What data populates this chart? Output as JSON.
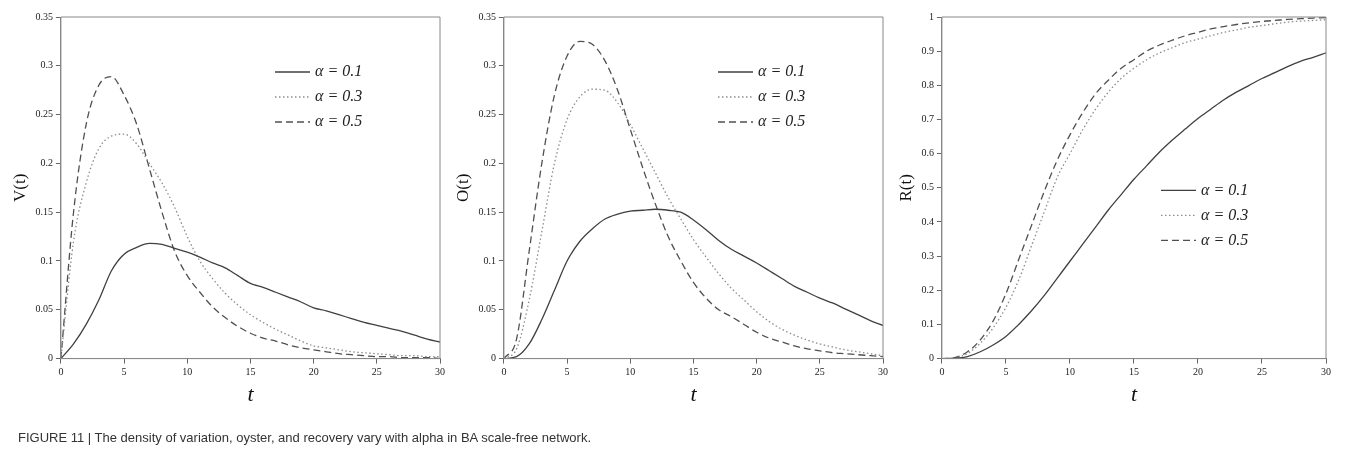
{
  "chart_data": [
    {
      "type": "line",
      "xlabel": "t",
      "ylabel": "V(t)",
      "x": [
        0,
        1,
        2,
        3,
        4,
        5,
        6,
        7,
        8,
        9,
        10,
        11,
        12,
        13,
        14,
        15,
        16,
        17,
        18,
        19,
        20,
        21,
        22,
        23,
        24,
        25,
        26,
        27,
        28,
        29,
        30
      ],
      "xlim": [
        0,
        30
      ],
      "xticks": [
        0,
        5,
        10,
        15,
        20,
        25,
        30
      ],
      "ylim": [
        0,
        0.35
      ],
      "yticks": [
        0,
        0.05,
        0.1,
        0.15,
        0.2,
        0.25,
        0.3,
        0.35
      ],
      "legend": "top right",
      "grid": false,
      "marker": "none",
      "annotations": [
        "FIGURE 11 | The density of variation, oyster, and recovery vary with alpha in BA scale-free network."
      ],
      "series": [
        {
          "name": "α = 0.1",
          "color": "#404040",
          "line_style": "solid",
          "values": [
            0,
            0.015,
            0.035,
            0.06,
            0.09,
            0.107,
            0.114,
            0.118,
            0.117,
            0.113,
            0.109,
            0.104,
            0.098,
            0.093,
            0.085,
            0.077,
            0.073,
            0.068,
            0.063,
            0.058,
            0.052,
            0.049,
            0.045,
            0.041,
            0.037,
            0.034,
            0.031,
            0.028,
            0.024,
            0.02,
            0.017
          ]
        },
        {
          "name": "α = 0.3",
          "color": "#8c8c8c",
          "line_style": "dotted",
          "values": [
            0,
            0.12,
            0.18,
            0.215,
            0.228,
            0.23,
            0.22,
            0.2,
            0.18,
            0.155,
            0.125,
            0.1,
            0.082,
            0.067,
            0.055,
            0.045,
            0.037,
            0.03,
            0.024,
            0.018,
            0.013,
            0.011,
            0.009,
            0.007,
            0.006,
            0.005,
            0.004,
            0.003,
            0.003,
            0.002,
            0.002
          ]
        },
        {
          "name": "α = 0.5",
          "color": "#505050",
          "line_style": "dashed",
          "values": [
            0,
            0.15,
            0.24,
            0.28,
            0.289,
            0.27,
            0.24,
            0.195,
            0.15,
            0.11,
            0.085,
            0.068,
            0.053,
            0.042,
            0.033,
            0.026,
            0.021,
            0.018,
            0.014,
            0.011,
            0.009,
            0.007,
            0.005,
            0.004,
            0.003,
            0.002,
            0.002,
            0.001,
            0.001,
            0.001,
            0
          ]
        }
      ]
    },
    {
      "type": "line",
      "xlabel": "t",
      "ylabel": "O(t)",
      "x": [
        0,
        1,
        2,
        3,
        4,
        5,
        6,
        7,
        8,
        9,
        10,
        11,
        12,
        13,
        14,
        15,
        16,
        17,
        18,
        19,
        20,
        21,
        22,
        23,
        24,
        25,
        26,
        27,
        28,
        29,
        30
      ],
      "xlim": [
        0,
        30
      ],
      "xticks": [
        0,
        5,
        10,
        15,
        20,
        25,
        30
      ],
      "ylim": [
        0,
        0.35
      ],
      "yticks": [
        0,
        0.05,
        0.1,
        0.15,
        0.2,
        0.25,
        0.3,
        0.35
      ],
      "legend": "top right",
      "grid": false,
      "marker": "none",
      "series": [
        {
          "name": "α = 0.1",
          "color": "#404040",
          "line_style": "solid",
          "values": [
            0,
            0.002,
            0.015,
            0.04,
            0.07,
            0.1,
            0.12,
            0.133,
            0.143,
            0.148,
            0.151,
            0.152,
            0.153,
            0.152,
            0.15,
            0.142,
            0.132,
            0.121,
            0.112,
            0.105,
            0.098,
            0.09,
            0.082,
            0.074,
            0.068,
            0.062,
            0.057,
            0.051,
            0.045,
            0.039,
            0.034
          ]
        },
        {
          "name": "α = 0.3",
          "color": "#8c8c8c",
          "line_style": "dotted",
          "values": [
            0,
            0.01,
            0.06,
            0.13,
            0.2,
            0.245,
            0.268,
            0.276,
            0.275,
            0.262,
            0.24,
            0.215,
            0.19,
            0.165,
            0.143,
            0.122,
            0.104,
            0.087,
            0.072,
            0.06,
            0.048,
            0.038,
            0.03,
            0.024,
            0.019,
            0.015,
            0.012,
            0.009,
            0.007,
            0.005,
            0.003
          ]
        },
        {
          "name": "α = 0.5",
          "color": "#505050",
          "line_style": "dashed",
          "values": [
            0,
            0.02,
            0.11,
            0.2,
            0.27,
            0.31,
            0.325,
            0.322,
            0.305,
            0.275,
            0.235,
            0.195,
            0.158,
            0.125,
            0.1,
            0.078,
            0.062,
            0.05,
            0.043,
            0.035,
            0.027,
            0.021,
            0.017,
            0.013,
            0.01,
            0.008,
            0.006,
            0.005,
            0.004,
            0.003,
            0.002
          ]
        }
      ]
    },
    {
      "type": "line",
      "xlabel": "t",
      "ylabel": "R(t)",
      "x": [
        0,
        1,
        2,
        3,
        4,
        5,
        6,
        7,
        8,
        9,
        10,
        11,
        12,
        13,
        14,
        15,
        16,
        17,
        18,
        19,
        20,
        21,
        22,
        23,
        24,
        25,
        26,
        27,
        28,
        29,
        30
      ],
      "xlim": [
        0,
        30
      ],
      "xticks": [
        0,
        5,
        10,
        15,
        20,
        25,
        30
      ],
      "ylim": [
        0,
        1
      ],
      "yticks": [
        0,
        0.1,
        0.2,
        0.3,
        0.4,
        0.5,
        0.6,
        0.7,
        0.8,
        0.9,
        1
      ],
      "legend": "right",
      "grid": false,
      "marker": "none",
      "series": [
        {
          "name": "α = 0.1",
          "color": "#404040",
          "line_style": "solid",
          "values": [
            0,
            0.001,
            0.006,
            0.02,
            0.04,
            0.065,
            0.1,
            0.14,
            0.185,
            0.235,
            0.285,
            0.335,
            0.385,
            0.435,
            0.48,
            0.525,
            0.565,
            0.605,
            0.64,
            0.672,
            0.703,
            0.73,
            0.757,
            0.78,
            0.8,
            0.82,
            0.837,
            0.855,
            0.87,
            0.882,
            0.895
          ]
        },
        {
          "name": "α = 0.3",
          "color": "#8c8c8c",
          "line_style": "dotted",
          "values": [
            0,
            0.002,
            0.015,
            0.045,
            0.09,
            0.15,
            0.23,
            0.33,
            0.43,
            0.53,
            0.6,
            0.67,
            0.73,
            0.78,
            0.82,
            0.85,
            0.875,
            0.895,
            0.91,
            0.925,
            0.935,
            0.945,
            0.955,
            0.962,
            0.97,
            0.975,
            0.98,
            0.985,
            0.988,
            0.99,
            0.992
          ]
        },
        {
          "name": "α = 0.5",
          "color": "#505050",
          "line_style": "dashed",
          "values": [
            0,
            0.003,
            0.02,
            0.055,
            0.11,
            0.19,
            0.29,
            0.39,
            0.49,
            0.58,
            0.655,
            0.72,
            0.775,
            0.815,
            0.85,
            0.875,
            0.9,
            0.918,
            0.932,
            0.945,
            0.955,
            0.965,
            0.972,
            0.978,
            0.983,
            0.987,
            0.99,
            0.993,
            0.995,
            0.997,
            0.998
          ]
        }
      ]
    }
  ]
}
